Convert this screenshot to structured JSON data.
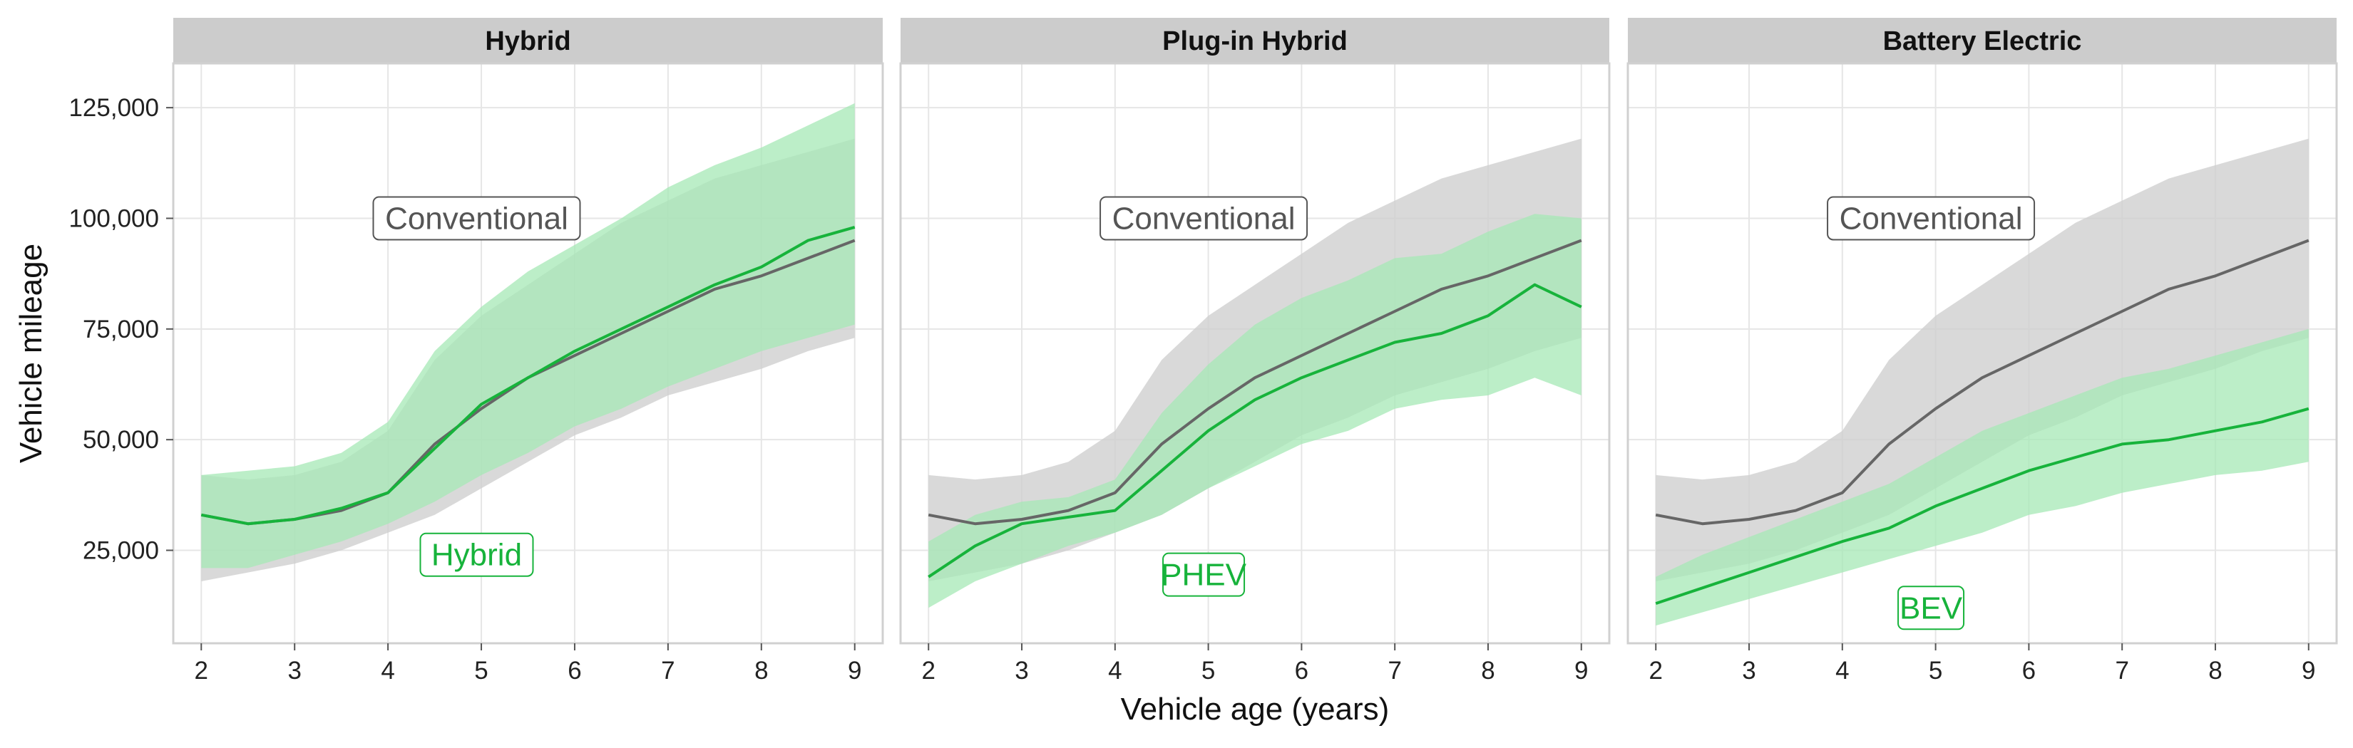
{
  "chart_data": {
    "type": "line",
    "xlabel": "Vehicle age (years)",
    "ylabel": "Vehicle mileage",
    "xlim": [
      1.7,
      9.3
    ],
    "ylim": [
      4000,
      135000
    ],
    "x_ticks": [
      2,
      3,
      4,
      5,
      6,
      7,
      8,
      9
    ],
    "y_ticks": [
      25000,
      50000,
      75000,
      100000,
      125000
    ],
    "y_tick_labels": [
      "25,000",
      "50,000",
      "75,000",
      "100,000",
      "125,000"
    ],
    "grid": true,
    "colors": {
      "conventional_line": "#666666",
      "conventional_band": "#cfcfcf",
      "ev_line": "#17b33b",
      "ev_band": "#a6e8b6",
      "strip_bg": "#cccccc",
      "panel_border": "#d0d0d0",
      "grid": "#e6e6e6"
    },
    "x": [
      2,
      2.5,
      3,
      3.5,
      4,
      4.5,
      5,
      5.5,
      6,
      6.5,
      7,
      7.5,
      8,
      8.5,
      9
    ],
    "conventional": {
      "name": "Conventional",
      "values": [
        33000,
        31000,
        32000,
        34000,
        38000,
        49000,
        57000,
        64000,
        69000,
        74000,
        79000,
        84000,
        87000,
        91000,
        95000
      ],
      "upper": [
        42000,
        41000,
        42000,
        45000,
        52000,
        68000,
        78000,
        85000,
        92000,
        99000,
        104000,
        109000,
        112000,
        115000,
        118000
      ],
      "lower": [
        18000,
        20000,
        22000,
        25000,
        29000,
        33000,
        39000,
        45000,
        51000,
        55000,
        60000,
        63000,
        66000,
        70000,
        73000
      ]
    },
    "panels": [
      {
        "title": "Hybrid",
        "ev_label": "Hybrid",
        "conventional_label": "Conventional",
        "ev": {
          "values": [
            33000,
            31000,
            32000,
            34500,
            38000,
            48000,
            58000,
            64000,
            70000,
            75000,
            80000,
            85000,
            89000,
            95000,
            98000
          ],
          "upper": [
            42000,
            43000,
            44000,
            47000,
            54000,
            70000,
            80000,
            88000,
            94000,
            100000,
            107000,
            112000,
            116000,
            121000,
            126000
          ],
          "lower": [
            21000,
            21000,
            24000,
            27000,
            31000,
            36000,
            42000,
            47000,
            53000,
            57000,
            62000,
            66000,
            70000,
            73000,
            76000
          ]
        }
      },
      {
        "title": "Plug-in Hybrid",
        "ev_label": "PHEV",
        "conventional_label": "Conventional",
        "ev": {
          "values": [
            19000,
            26000,
            31000,
            32500,
            34000,
            43000,
            52000,
            59000,
            64000,
            68000,
            72000,
            74000,
            78000,
            85000,
            80000
          ],
          "upper": [
            27000,
            33000,
            36000,
            37000,
            41000,
            56000,
            67000,
            76000,
            82000,
            86000,
            91000,
            92000,
            97000,
            101000,
            100000
          ],
          "lower": [
            12000,
            18000,
            22000,
            26000,
            29000,
            33000,
            39000,
            44000,
            49000,
            52000,
            57000,
            59000,
            60000,
            64000,
            60000
          ]
        }
      },
      {
        "title": "Battery Electric",
        "ev_label": "BEV",
        "conventional_label": "Conventional",
        "ev": {
          "values": [
            13000,
            16500,
            20000,
            23500,
            27000,
            30000,
            35000,
            39000,
            43000,
            46000,
            49000,
            50000,
            52000,
            54000,
            57000
          ],
          "upper": [
            19000,
            24000,
            28000,
            32000,
            36000,
            40000,
            46000,
            52000,
            56000,
            60000,
            64000,
            66000,
            69000,
            72000,
            75000
          ],
          "lower": [
            8000,
            11000,
            14000,
            17000,
            20000,
            23000,
            26000,
            29000,
            33000,
            35000,
            38000,
            40000,
            42000,
            43000,
            45000
          ]
        }
      }
    ]
  }
}
